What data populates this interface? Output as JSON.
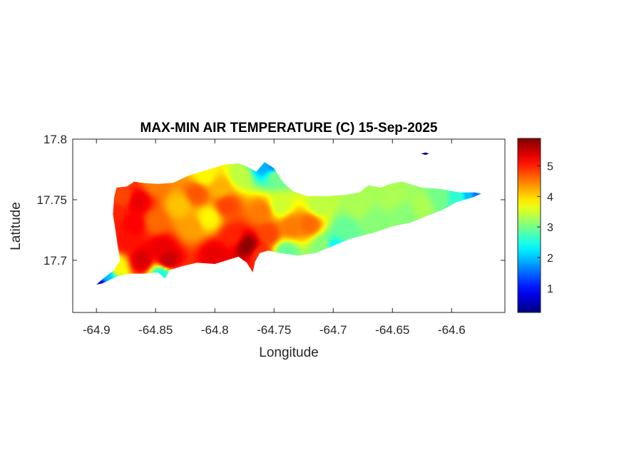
{
  "title": "MAX-MIN AIR TEMPERATURE (C) 15-Sep-2025",
  "xlabel": "Longitude",
  "ylabel": "Latitude",
  "xticks": [
    {
      "value": -64.9,
      "label": "-64.9"
    },
    {
      "value": -64.85,
      "label": "-64.85"
    },
    {
      "value": -64.8,
      "label": "-64.8"
    },
    {
      "value": -64.75,
      "label": "-64.75"
    },
    {
      "value": -64.7,
      "label": "-64.7"
    },
    {
      "value": -64.65,
      "label": "-64.65"
    },
    {
      "value": -64.6,
      "label": "-64.6"
    }
  ],
  "yticks": [
    {
      "value": 17.7,
      "label": "17.7"
    },
    {
      "value": 17.75,
      "label": "17.75"
    },
    {
      "value": 17.8,
      "label": "17.8"
    }
  ],
  "colorbar": {
    "colormap": "jet",
    "range": [
      0.2,
      5.9
    ],
    "ticks": [
      {
        "value": 1,
        "label": "1"
      },
      {
        "value": 2,
        "label": "2"
      },
      {
        "value": 3,
        "label": "3"
      },
      {
        "value": 4,
        "label": "4"
      },
      {
        "value": 5,
        "label": "5"
      }
    ]
  },
  "chart_data": {
    "type": "heatmap",
    "title": "MAX-MIN AIR TEMPERATURE (C) 15-Sep-2025",
    "xlabel": "Longitude",
    "ylabel": "Latitude",
    "xlim": [
      -64.92,
      -64.555
    ],
    "ylim": [
      17.657,
      17.8
    ],
    "grid": false,
    "colorbar_range": [
      0.2,
      5.9
    ],
    "island_outline": [
      [
        -64.9,
        17.68
      ],
      [
        -64.893,
        17.686
      ],
      [
        -64.885,
        17.692
      ],
      [
        -64.88,
        17.7
      ],
      [
        -64.882,
        17.712
      ],
      [
        -64.884,
        17.725
      ],
      [
        -64.886,
        17.738
      ],
      [
        -64.885,
        17.752
      ],
      [
        -64.883,
        17.76
      ],
      [
        -64.874,
        17.761
      ],
      [
        -64.868,
        17.765
      ],
      [
        -64.862,
        17.764
      ],
      [
        -64.848,
        17.763
      ],
      [
        -64.835,
        17.764
      ],
      [
        -64.822,
        17.77
      ],
      [
        -64.805,
        17.775
      ],
      [
        -64.792,
        17.779
      ],
      [
        -64.78,
        17.78
      ],
      [
        -64.772,
        17.777
      ],
      [
        -64.765,
        17.773
      ],
      [
        -64.758,
        17.781
      ],
      [
        -64.75,
        17.776
      ],
      [
        -64.742,
        17.764
      ],
      [
        -64.734,
        17.757
      ],
      [
        -64.722,
        17.753
      ],
      [
        -64.705,
        17.753
      ],
      [
        -64.69,
        17.754
      ],
      [
        -64.678,
        17.756
      ],
      [
        -64.67,
        17.762
      ],
      [
        -64.66,
        17.76
      ],
      [
        -64.652,
        17.763
      ],
      [
        -64.642,
        17.765
      ],
      [
        -64.625,
        17.76
      ],
      [
        -64.61,
        17.759
      ],
      [
        -64.593,
        17.756
      ],
      [
        -64.58,
        17.756
      ],
      [
        -64.575,
        17.755
      ],
      [
        -64.582,
        17.752
      ],
      [
        -64.596,
        17.748
      ],
      [
        -64.607,
        17.742
      ],
      [
        -64.62,
        17.737
      ],
      [
        -64.635,
        17.731
      ],
      [
        -64.65,
        17.728
      ],
      [
        -64.665,
        17.723
      ],
      [
        -64.685,
        17.718
      ],
      [
        -64.7,
        17.712
      ],
      [
        -64.715,
        17.706
      ],
      [
        -64.73,
        17.704
      ],
      [
        -64.745,
        17.706
      ],
      [
        -64.755,
        17.708
      ],
      [
        -64.762,
        17.706
      ],
      [
        -64.766,
        17.699
      ],
      [
        -64.768,
        17.69
      ],
      [
        -64.773,
        17.698
      ],
      [
        -64.78,
        17.703
      ],
      [
        -64.79,
        17.7
      ],
      [
        -64.8,
        17.697
      ],
      [
        -64.815,
        17.698
      ],
      [
        -64.828,
        17.695
      ],
      [
        -64.838,
        17.692
      ],
      [
        -64.842,
        17.685
      ],
      [
        -64.848,
        17.69
      ],
      [
        -64.86,
        17.689
      ],
      [
        -64.872,
        17.689
      ],
      [
        -64.882,
        17.687
      ],
      [
        -64.895,
        17.681
      ]
    ],
    "buck_island_outline": [
      [
        -64.626,
        17.788
      ],
      [
        -64.622,
        17.789
      ],
      [
        -64.619,
        17.788
      ],
      [
        -64.622,
        17.787
      ]
    ],
    "buck_island_value": 0.3,
    "stations": [
      [
        -64.885,
        17.74,
        5.0
      ],
      [
        -64.878,
        17.752,
        4.8
      ],
      [
        -64.865,
        17.748,
        5.3
      ],
      [
        -64.868,
        17.73,
        5.2
      ],
      [
        -64.875,
        17.715,
        5.1
      ],
      [
        -64.862,
        17.7,
        5.4
      ],
      [
        -64.85,
        17.732,
        4.6
      ],
      [
        -64.845,
        17.71,
        5.3
      ],
      [
        -64.84,
        17.7,
        5.5
      ],
      [
        -64.83,
        17.745,
        4.1
      ],
      [
        -64.82,
        17.728,
        4.3
      ],
      [
        -64.815,
        17.755,
        4.7
      ],
      [
        -64.805,
        17.735,
        3.8
      ],
      [
        -64.8,
        17.705,
        5.3
      ],
      [
        -64.795,
        17.76,
        4.2
      ],
      [
        -64.79,
        17.745,
        4.8
      ],
      [
        -64.785,
        17.72,
        5.0
      ],
      [
        -64.772,
        17.712,
        5.8
      ],
      [
        -64.778,
        17.77,
        3.4
      ],
      [
        -64.76,
        17.74,
        4.5
      ],
      [
        -64.755,
        17.722,
        4.8
      ],
      [
        -64.762,
        17.705,
        4.9
      ],
      [
        -64.748,
        17.77,
        3.0
      ],
      [
        -64.745,
        17.745,
        3.5
      ],
      [
        -64.735,
        17.728,
        4.5
      ],
      [
        -64.72,
        17.73,
        4.6
      ],
      [
        -64.712,
        17.745,
        3.4
      ],
      [
        -64.708,
        17.712,
        3.1
      ],
      [
        -64.69,
        17.725,
        2.9
      ],
      [
        -64.678,
        17.745,
        3.3
      ],
      [
        -64.665,
        17.733,
        3.1
      ],
      [
        -64.65,
        17.752,
        3.3
      ],
      [
        -64.64,
        17.738,
        3.1
      ],
      [
        -64.625,
        17.745,
        3.3
      ],
      [
        -64.61,
        17.752,
        3.0
      ],
      [
        -64.595,
        17.752,
        2.6
      ],
      [
        -64.58,
        17.755,
        1.6
      ],
      [
        -64.585,
        17.754,
        2.0
      ],
      [
        -64.76,
        17.778,
        1.9
      ],
      [
        -64.75,
        17.778,
        1.7
      ],
      [
        -64.9,
        17.681,
        0.6
      ],
      [
        -64.892,
        17.689,
        2.0
      ],
      [
        -64.883,
        17.695,
        3.8
      ],
      [
        -64.845,
        17.688,
        2.5
      ],
      [
        -64.7,
        17.71,
        2.3
      ],
      [
        -64.74,
        17.706,
        2.9
      ],
      [
        -64.85,
        17.764,
        4.5
      ],
      [
        -64.808,
        17.77,
        3.8
      ]
    ]
  }
}
